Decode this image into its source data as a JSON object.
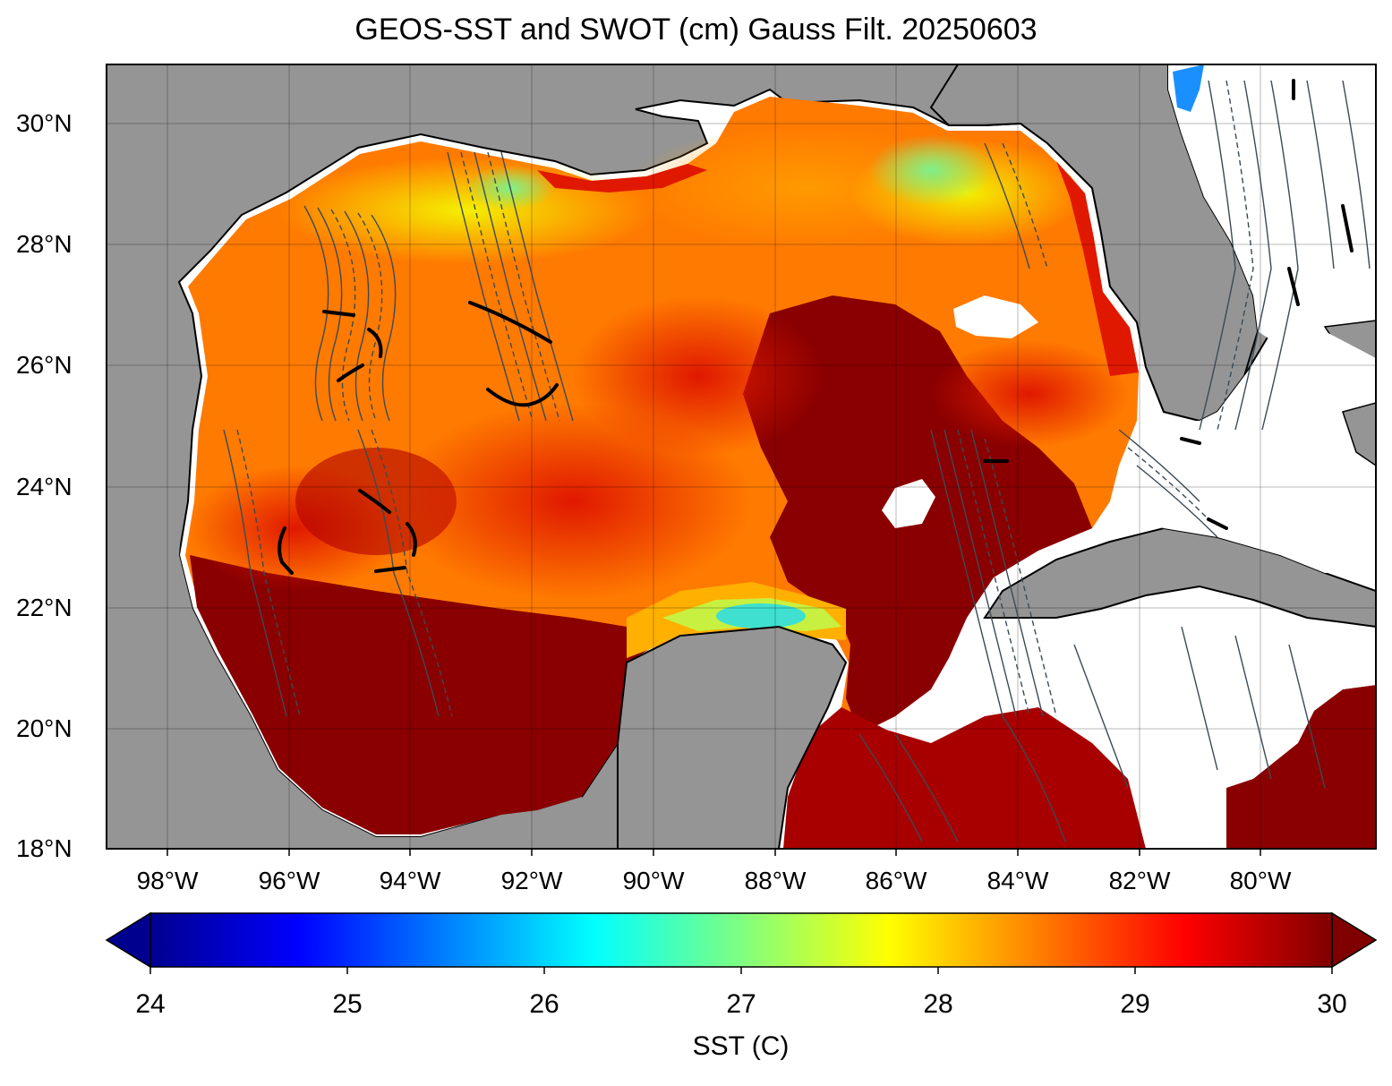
{
  "title": "GEOS-SST  and SWOT (cm) Gauss Filt. 20250603",
  "map": {
    "lat_labels": [
      "18°N",
      "20°N",
      "22°N",
      "24°N",
      "26°N",
      "28°N",
      "30°N"
    ],
    "lon_labels": [
      "98°W",
      "96°W",
      "94°W",
      "92°W",
      "90°W",
      "88°W",
      "86°W",
      "84°W",
      "82°W",
      "80°W"
    ],
    "extent": {
      "lon": [
        -99,
        -78.2
      ],
      "lat": [
        18,
        31
      ]
    },
    "colors": {
      "land": "#959595",
      "no_data": "#ffffff",
      "contour": "#3a4a55"
    }
  },
  "colorbar": {
    "label": "SST (C)",
    "ticks": [
      "24",
      "25",
      "26",
      "27",
      "28",
      "29",
      "30"
    ],
    "range": [
      24,
      30
    ],
    "colormap": "jet",
    "extend": "both"
  }
}
